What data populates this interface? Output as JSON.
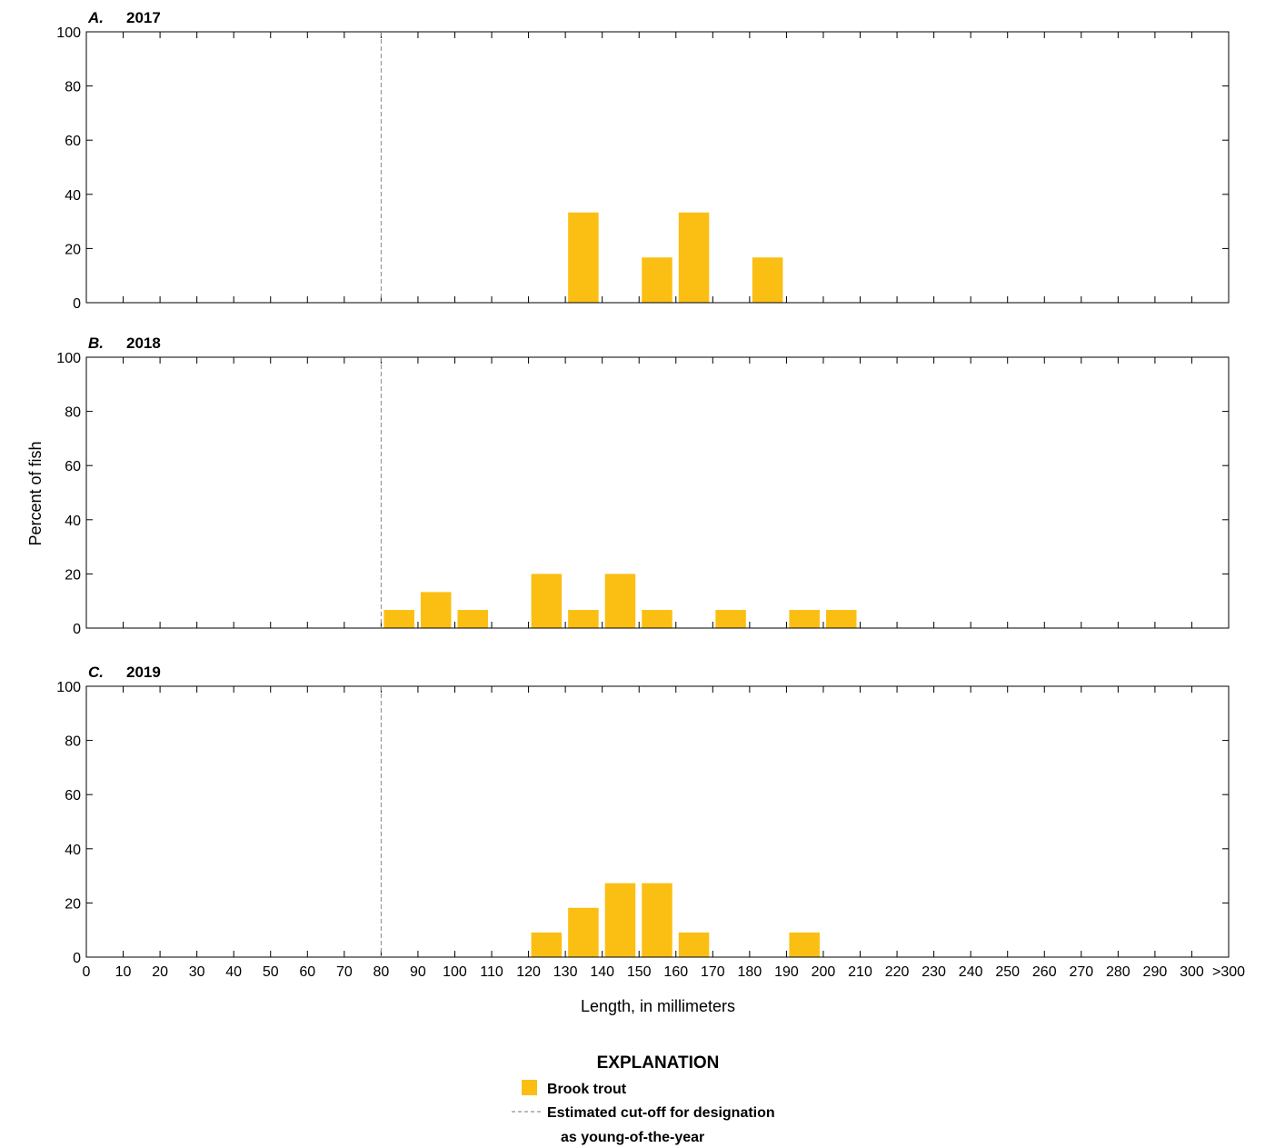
{
  "chart_data": {
    "type": "bar",
    "categories": [
      "0",
      "10",
      "20",
      "30",
      "40",
      "50",
      "60",
      "70",
      "80",
      "90",
      "100",
      "110",
      "120",
      "130",
      "140",
      "150",
      "160",
      "170",
      "180",
      "190",
      "200",
      "210",
      "220",
      "230",
      "240",
      "250",
      "260",
      "270",
      "280",
      "290",
      "300",
      ">300"
    ],
    "ylabel": "Percent of fish",
    "xlabel": "Length, in millimeters",
    "ylim": [
      0,
      100
    ],
    "yticks": [
      0,
      20,
      40,
      60,
      80,
      100
    ],
    "cutoff_mm": 80,
    "bar_color": "#FBBF14",
    "panels": [
      {
        "letter": "A.",
        "year": "2017",
        "bars": [
          {
            "bin": 130,
            "value": 33.3
          },
          {
            "bin": 150,
            "value": 16.7
          },
          {
            "bin": 160,
            "value": 33.3
          },
          {
            "bin": 180,
            "value": 16.7
          }
        ]
      },
      {
        "letter": "B.",
        "year": "2018",
        "bars": [
          {
            "bin": 80,
            "value": 6.7
          },
          {
            "bin": 90,
            "value": 13.3
          },
          {
            "bin": 100,
            "value": 6.7
          },
          {
            "bin": 120,
            "value": 20.0
          },
          {
            "bin": 130,
            "value": 6.7
          },
          {
            "bin": 140,
            "value": 20.0
          },
          {
            "bin": 150,
            "value": 6.7
          },
          {
            "bin": 170,
            "value": 6.7
          },
          {
            "bin": 190,
            "value": 6.7
          },
          {
            "bin": 200,
            "value": 6.7
          }
        ]
      },
      {
        "letter": "C.",
        "year": "2019",
        "bars": [
          {
            "bin": 120,
            "value": 9.1
          },
          {
            "bin": 130,
            "value": 18.2
          },
          {
            "bin": 140,
            "value": 27.3
          },
          {
            "bin": 150,
            "value": 27.3
          },
          {
            "bin": 160,
            "value": 9.1
          },
          {
            "bin": 190,
            "value": 9.1
          }
        ]
      }
    ],
    "legend": {
      "title": "EXPLANATION",
      "bar_label": "Brook trout",
      "line_label_1": "Estimated cut-off for designation",
      "line_label_2": "as young-of-the-year"
    }
  }
}
